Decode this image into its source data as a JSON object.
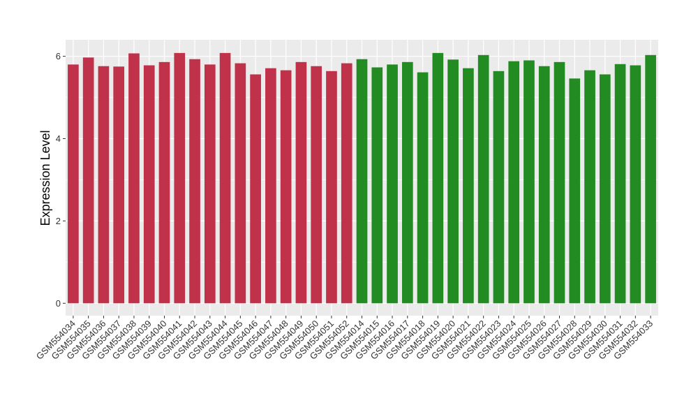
{
  "chart_data": {
    "type": "bar",
    "y_label": "Expression Level",
    "categories": [
      "GSM554034",
      "GSM554035",
      "GSM554036",
      "GSM554037",
      "GSM554038",
      "GSM554039",
      "GSM554040",
      "GSM554041",
      "GSM554042",
      "GSM554043",
      "GSM554044",
      "GSM554045",
      "GSM554046",
      "GSM554047",
      "GSM554048",
      "GSM554049",
      "GSM554050",
      "GSM554051",
      "GSM554052",
      "GSM554014",
      "GSM554015",
      "GSM554016",
      "GSM554017",
      "GSM554018",
      "GSM554019",
      "GSM554020",
      "GSM554021",
      "GSM554022",
      "GSM554023",
      "GSM554024",
      "GSM554025",
      "GSM554026",
      "GSM554027",
      "GSM554028",
      "GSM554029",
      "GSM554030",
      "GSM554031",
      "GSM554032",
      "GSM554033"
    ],
    "values": [
      5.8,
      5.97,
      5.76,
      5.75,
      6.07,
      5.78,
      5.86,
      6.08,
      5.93,
      5.8,
      6.08,
      5.83,
      5.56,
      5.71,
      5.66,
      5.86,
      5.76,
      5.64,
      5.83,
      5.93,
      5.73,
      5.8,
      5.86,
      5.61,
      6.08,
      5.92,
      5.71,
      6.03,
      5.64,
      5.88,
      5.9,
      5.76,
      5.86,
      5.46,
      5.66,
      5.56,
      5.81,
      5.78,
      6.03
    ],
    "colors": [
      "#c0314a",
      "#c0314a",
      "#c0314a",
      "#c0314a",
      "#c0314a",
      "#c0314a",
      "#c0314a",
      "#c0314a",
      "#c0314a",
      "#c0314a",
      "#c0314a",
      "#c0314a",
      "#c0314a",
      "#c0314a",
      "#c0314a",
      "#c0314a",
      "#c0314a",
      "#c0314a",
      "#c0314a",
      "#228b22",
      "#228b22",
      "#228b22",
      "#228b22",
      "#228b22",
      "#228b22",
      "#228b22",
      "#228b22",
      "#228b22",
      "#228b22",
      "#228b22",
      "#228b22",
      "#228b22",
      "#228b22",
      "#228b22",
      "#228b22",
      "#228b22",
      "#228b22",
      "#228b22",
      "#228b22"
    ],
    "ylim": [
      -0.3,
      6.4
    ],
    "yticks": [
      0,
      2,
      4,
      6
    ],
    "yminor": [
      1,
      3,
      5
    ],
    "grid": true
  }
}
